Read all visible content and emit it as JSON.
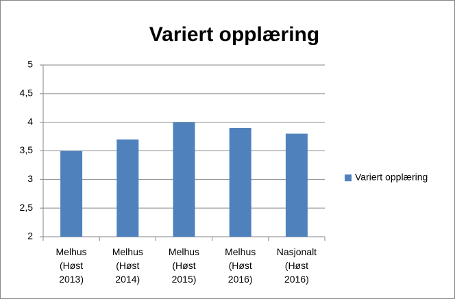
{
  "chart_data": {
    "type": "bar",
    "title": "Variert opplæring",
    "categories": [
      "Melhus (Høst 2013)",
      "Melhus (Høst 2014)",
      "Melhus (Høst 2015)",
      "Melhus (Høst 2016)",
      "Nasjonalt (Høst 2016)"
    ],
    "series": [
      {
        "name": "Variert opplæring",
        "color": "#4f81bd",
        "values": [
          3.5,
          3.7,
          4.0,
          3.9,
          3.8
        ]
      }
    ],
    "ylim": [
      2,
      5
    ],
    "yticks": [
      2,
      {
        "value": 2.5,
        "label": "2,5"
      },
      3,
      {
        "value": 3.5,
        "label": "3,5"
      },
      4,
      {
        "value": 4.5,
        "label": "4,5"
      },
      5
    ],
    "grid": true,
    "legend": "right"
  }
}
